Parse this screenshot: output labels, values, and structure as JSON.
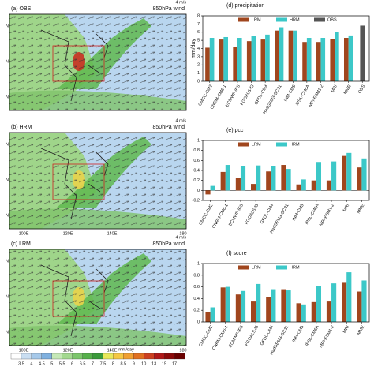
{
  "maps": {
    "panels": [
      {
        "label": "(a) OBS",
        "level": "850hPa wind",
        "ref": "4 m/s",
        "lat_labels": [
          "N",
          "N",
          "N"
        ]
      },
      {
        "label": "(b) HRM",
        "level": "850hPa wind",
        "ref": "4 m/s",
        "lat_labels": [
          "N",
          "N",
          "N"
        ]
      },
      {
        "label": "(c) LRM",
        "level": "850hPa wind",
        "ref": "4 m/s",
        "lat_labels": [
          "N",
          "N",
          "N"
        ]
      }
    ],
    "lon_labels": [
      "100E",
      "120E",
      "140E",
      "180"
    ],
    "colorbar": {
      "ticks": [
        3.5,
        4,
        4.5,
        5,
        5.5,
        6,
        6.5,
        7,
        7.5,
        8,
        8.5,
        9,
        10,
        13,
        15,
        17
      ],
      "unit": "mm/day",
      "colors": [
        "#ffffff",
        "#c9def2",
        "#a6c9ea",
        "#7fb0df",
        "#c5e8b7",
        "#a3d98f",
        "#7cc66b",
        "#56b04a",
        "#3a9a3a",
        "#e8e85a",
        "#f5c842",
        "#f0a030",
        "#e07020",
        "#cc4020",
        "#b01818",
        "#8c0a0a",
        "#6a0000"
      ]
    }
  },
  "chart_data": [
    {
      "type": "bar",
      "title": "(d) precipitation",
      "y_label": "mm/day",
      "categories": [
        "CMCC-CM2",
        "CNRM-CM6-1",
        "ECMWF-IFS",
        "FGOALS-f3",
        "GFDL-CM4",
        "HadGEM3-GC31",
        "INM-CM5",
        "IPSL-CM6A",
        "MPI-ESM1-2",
        "MRI",
        "MME",
        "OBS"
      ],
      "series": [
        {
          "name": "LRM",
          "color": "#a0461e",
          "values": [
            4.1,
            5.1,
            4.2,
            4.9,
            5.1,
            6.2,
            6.2,
            4.8,
            4.8,
            5.2,
            5.3,
            null
          ]
        },
        {
          "name": "HRM",
          "color": "#3cc8c8",
          "values": [
            5.3,
            5.4,
            5.3,
            5.5,
            5.7,
            6.6,
            6.2,
            5.3,
            5.3,
            6.0,
            5.6,
            null
          ]
        },
        {
          "name": "OBS",
          "color": "#555555",
          "values": [
            null,
            null,
            null,
            null,
            null,
            null,
            null,
            null,
            null,
            null,
            null,
            6.8
          ]
        }
      ],
      "ylim": [
        0,
        8
      ],
      "yticks": [
        0,
        1,
        2,
        3,
        4,
        5,
        6,
        7,
        8
      ]
    },
    {
      "type": "bar",
      "title": "(e) pcc",
      "categories": [
        "CMCC-CM2",
        "CNRM-CM6-1",
        "ECMWF-IFS",
        "FGOALS-f3",
        "GFDL-CM4",
        "HadGEM3-GC31",
        "INM-CM5",
        "IPSL-CM6A",
        "MPI-ESM1-2",
        "MRI",
        "MME"
      ],
      "series": [
        {
          "name": "LRM",
          "color": "#a0461e",
          "values": [
            -0.08,
            0.37,
            0.25,
            0.13,
            0.38,
            0.51,
            0.12,
            0.2,
            0.2,
            0.69,
            0.46
          ]
        },
        {
          "name": "HRM",
          "color": "#3cc8c8",
          "values": [
            0.09,
            0.51,
            0.48,
            0.5,
            0.49,
            0.43,
            0.22,
            0.57,
            0.58,
            0.75,
            0.64
          ]
        }
      ],
      "ylim": [
        -0.2,
        1
      ],
      "yticks": [
        -0.2,
        0,
        0.2,
        0.4,
        0.6,
        0.8,
        1
      ]
    },
    {
      "type": "bar",
      "title": "(f) score",
      "categories": [
        "CMCC-CM2",
        "CNRM-CM6-1",
        "ECMWF-IFS",
        "FGOALS-f3",
        "GFDL-CM4",
        "HadGEM3-GC31",
        "INM-CM5",
        "IPSL-CM6A",
        "MPI-ESM1-2",
        "MRI",
        "MME"
      ],
      "series": [
        {
          "name": "LRM",
          "color": "#a0461e",
          "values": [
            0.17,
            0.59,
            0.47,
            0.35,
            0.43,
            0.56,
            0.32,
            0.34,
            0.35,
            0.67,
            0.52
          ]
        },
        {
          "name": "HRM",
          "color": "#3cc8c8",
          "values": [
            0.25,
            0.6,
            0.53,
            0.65,
            0.56,
            0.54,
            0.3,
            0.61,
            0.66,
            0.85,
            0.71
          ]
        }
      ],
      "ylim": [
        0,
        1
      ],
      "yticks": [
        0,
        0.2,
        0.4,
        0.6,
        0.8,
        1
      ]
    }
  ]
}
